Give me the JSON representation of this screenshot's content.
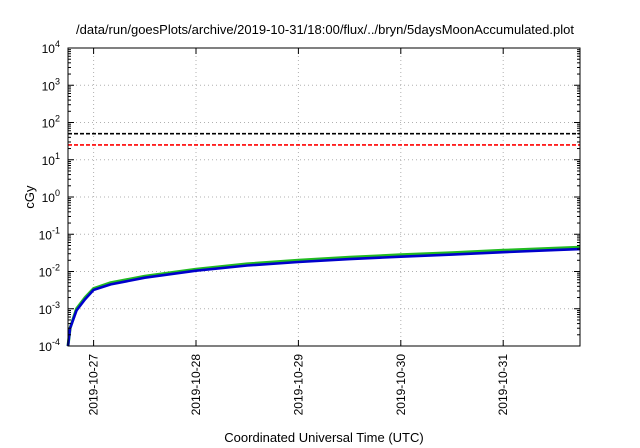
{
  "chart_data": {
    "type": "line",
    "title": "/data/run/goesPlots/archive/2019-10-31/18:00/flux/../bryn/5daysMoonAccumulated.plot",
    "xlabel": "Coordinated Universal Time (UTC)",
    "ylabel": "cGy",
    "y_scale": "log",
    "ylim": [
      0.0001,
      10000
    ],
    "y_ticks": [
      {
        "value": 0.0001,
        "base": "10",
        "exp": "-4"
      },
      {
        "value": 0.001,
        "base": "10",
        "exp": "-3"
      },
      {
        "value": 0.01,
        "base": "10",
        "exp": "-2"
      },
      {
        "value": 0.1,
        "base": "10",
        "exp": "-1"
      },
      {
        "value": 1,
        "base": "10",
        "exp": "0"
      },
      {
        "value": 10,
        "base": "10",
        "exp": "1"
      },
      {
        "value": 100,
        "base": "10",
        "exp": "2"
      },
      {
        "value": 1000,
        "base": "10",
        "exp": "3"
      },
      {
        "value": 10000,
        "base": "10",
        "exp": "4"
      }
    ],
    "xlim": [
      "2019-10-26T18:00",
      "2019-10-31T18:00"
    ],
    "x_ticks": [
      "2019-10-27",
      "2019-10-28",
      "2019-10-29",
      "2019-10-30",
      "2019-10-31"
    ],
    "grid": true,
    "reference_lines": [
      {
        "value": 50,
        "style": "dashed",
        "color": "#000000"
      },
      {
        "value": 25,
        "style": "dashed",
        "color": "#ff0000"
      }
    ],
    "series": [
      {
        "color": "#22bb22",
        "x": [
          "2019-10-26T18:00",
          "2019-10-26T18:30",
          "2019-10-26T20:00",
          "2019-10-26T22:00",
          "2019-10-27T00:00",
          "2019-10-27T04:00",
          "2019-10-27T12:00",
          "2019-10-28T00:00",
          "2019-10-28T12:00",
          "2019-10-29T00:00",
          "2019-10-29T12:00",
          "2019-10-30T00:00",
          "2019-10-30T12:00",
          "2019-10-31T00:00",
          "2019-10-31T12:00",
          "2019-10-31T18:00"
        ],
        "values": [
          0.0001,
          0.0003,
          0.001,
          0.002,
          0.0035,
          0.005,
          0.0075,
          0.0115,
          0.016,
          0.02,
          0.024,
          0.028,
          0.032,
          0.037,
          0.042,
          0.045
        ]
      },
      {
        "color": "#0000cc",
        "x": [
          "2019-10-26T18:00",
          "2019-10-26T18:30",
          "2019-10-26T20:00",
          "2019-10-26T22:00",
          "2019-10-27T00:00",
          "2019-10-27T04:00",
          "2019-10-27T12:00",
          "2019-10-28T00:00",
          "2019-10-28T12:00",
          "2019-10-29T00:00",
          "2019-10-29T12:00",
          "2019-10-30T00:00",
          "2019-10-30T12:00",
          "2019-10-31T00:00",
          "2019-10-31T12:00",
          "2019-10-31T18:00"
        ],
        "values": [
          0.0001,
          0.0003,
          0.0009,
          0.0018,
          0.0032,
          0.0045,
          0.0068,
          0.0105,
          0.0145,
          0.018,
          0.0215,
          0.025,
          0.0285,
          0.033,
          0.0375,
          0.04
        ]
      }
    ],
    "colors": {
      "axes": "#000000",
      "grid": "#b0b0b0",
      "background": "#ffffff"
    }
  }
}
